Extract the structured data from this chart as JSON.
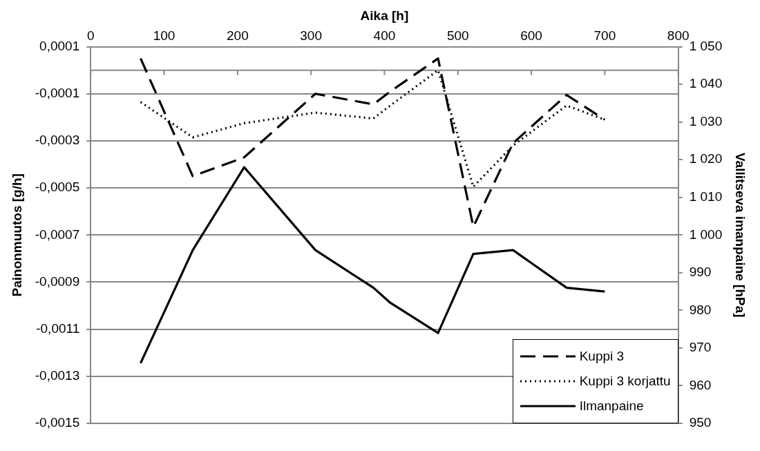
{
  "chart_data": {
    "type": "line",
    "xlabel": "Aika [h]",
    "ylabel": "Painonmuutos [g/h]",
    "y2label": "Vallitseva imanpaine [hPa]",
    "x": [
      68,
      139,
      209,
      306,
      385,
      408,
      473,
      521,
      575,
      648,
      700
    ],
    "series": [
      {
        "name": "Kuppi 3",
        "color": "#000000",
        "line_style": "dashed",
        "values": [
          5e-05,
          -0.00045,
          -0.00037,
          -0.0001,
          -0.000145,
          -9e-05,
          5e-05,
          -0.000665,
          -0.00031,
          -0.000105,
          -0.00021
        ]
      },
      {
        "name": "Kuppi 3 korjattu",
        "color": "#000000",
        "line_style": "dotted",
        "values": [
          -0.000135,
          -0.000285,
          -0.000225,
          -0.00018,
          -0.000205,
          -0.00015,
          0.0,
          -0.000495,
          -0.00032,
          -0.00015,
          -0.00021
        ]
      },
      {
        "name": "Ilmanpaine",
        "color": "#000000",
        "line_style": "solid",
        "axis": "y2",
        "values": [
          966,
          996,
          1018,
          996,
          986,
          982,
          974,
          995,
          996,
          986,
          985
        ]
      }
    ],
    "xlim": [
      0,
      800
    ],
    "xticks": [
      0,
      100,
      200,
      300,
      400,
      500,
      600,
      700,
      800
    ],
    "ylim": [
      -0.0015,
      0.0001
    ],
    "yticks": [
      {
        "value": 0.0001,
        "label": "0,0001"
      },
      {
        "value": -0.0001,
        "label": "-0,0001"
      },
      {
        "value": -0.0003,
        "label": "-0,0003"
      },
      {
        "value": -0.0005,
        "label": "-0,0005"
      },
      {
        "value": -0.0007,
        "label": "-0,0007"
      },
      {
        "value": -0.0009,
        "label": "-0,0009"
      },
      {
        "value": -0.0011,
        "label": "-0,0011"
      },
      {
        "value": -0.0013,
        "label": "-0,0013"
      },
      {
        "value": -0.0015,
        "label": "-0,0015"
      }
    ],
    "y2lim": [
      950,
      1050
    ],
    "y2ticks": [
      950,
      960,
      970,
      980,
      990,
      {
        "value": 1000,
        "label": "1 000"
      },
      {
        "value": 1010,
        "label": "1 010"
      },
      {
        "value": 1020,
        "label": "1 020"
      },
      {
        "value": 1030,
        "label": "1 030"
      },
      {
        "value": 1040,
        "label": "1 040"
      },
      {
        "value": 1050,
        "label": "1 050"
      }
    ],
    "ref_lines": [
      {
        "axis": "y",
        "value": 0,
        "color": "#888888"
      }
    ],
    "grid": "y",
    "legend": "bottom right",
    "marker": "none"
  }
}
